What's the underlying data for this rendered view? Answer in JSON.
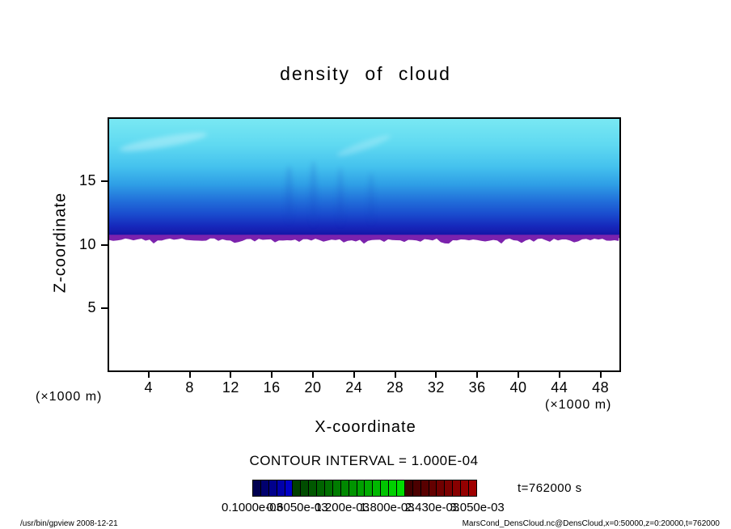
{
  "contour_text": "CONTOUR INTERVAL = 1.000E-04",
  "time_label": "t=762000 s",
  "footer": {
    "left": "/usr/bin/gpview  2008-12-21",
    "right": "MarsCond_DensCloud.nc@DensCloud,x=0:50000,z=0:20000,t=762000"
  },
  "colorbar": {
    "labels": [
      "0.1000e-03",
      "0.6050e-03",
      "1.200e-03",
      "1.800e-03",
      "2.430e-03",
      "3.050e-03"
    ],
    "colors": [
      "#000050",
      "#00006e",
      "#00008c",
      "#0000aa",
      "#0000c8",
      "#004000",
      "#004c00",
      "#005800",
      "#006400",
      "#007000",
      "#007c00",
      "#008800",
      "#009400",
      "#00a000",
      "#00ac00",
      "#00b800",
      "#00c400",
      "#00d000",
      "#00dc00",
      "#400000",
      "#4c0000",
      "#580000",
      "#640000",
      "#700000",
      "#7c0000",
      "#880000",
      "#940000",
      "#a00000"
    ]
  },
  "chart_data": {
    "type": "heatmap",
    "title": "density of cloud",
    "xlabel": "X-coordinate",
    "ylabel": "Z-coordinate",
    "x_unit": "(×1000 m)",
    "y_unit": "(×1000 m)",
    "xlim": [
      0,
      50
    ],
    "ylim": [
      0,
      20
    ],
    "x_ticks": [
      4,
      8,
      12,
      16,
      20,
      24,
      28,
      32,
      36,
      40,
      44,
      48
    ],
    "y_ticks": [
      5,
      10,
      15
    ],
    "grid": false,
    "contour_interval": 0.0001,
    "time_seconds": 762000,
    "field": "Filled-contour cloud density field, nearly uniform along x: zero (white) below z≈10.5; sharp maximum (purple/dark-blue band, ~3.0e-03) at z≈10.5–12; density decreases smoothly upward through blue and cyan to ~1.0e-04 (light cyan) near z=20.",
    "profile": {
      "z_x1000m": [
        10.5,
        11,
        12,
        13,
        15,
        17,
        20
      ],
      "density": [
        0.00305,
        0.0024,
        0.0015,
        0.0009,
        0.0004,
        0.0002,
        0.0001
      ]
    },
    "fill": {
      "cloud_bottom_frac": 0.472,
      "edge_color": "#7B22AD",
      "stops": [
        {
          "at": 0.0,
          "color": "#79E8F3"
        },
        {
          "at": 0.22,
          "color": "#5FD9F1"
        },
        {
          "at": 0.4,
          "color": "#45C2EE"
        },
        {
          "at": 0.55,
          "color": "#2F9FE6"
        },
        {
          "at": 0.68,
          "color": "#2272DB"
        },
        {
          "at": 0.8,
          "color": "#1A4CCE"
        },
        {
          "at": 0.9,
          "color": "#1629BC"
        },
        {
          "at": 1.0,
          "color": "#140FA0"
        }
      ]
    }
  }
}
